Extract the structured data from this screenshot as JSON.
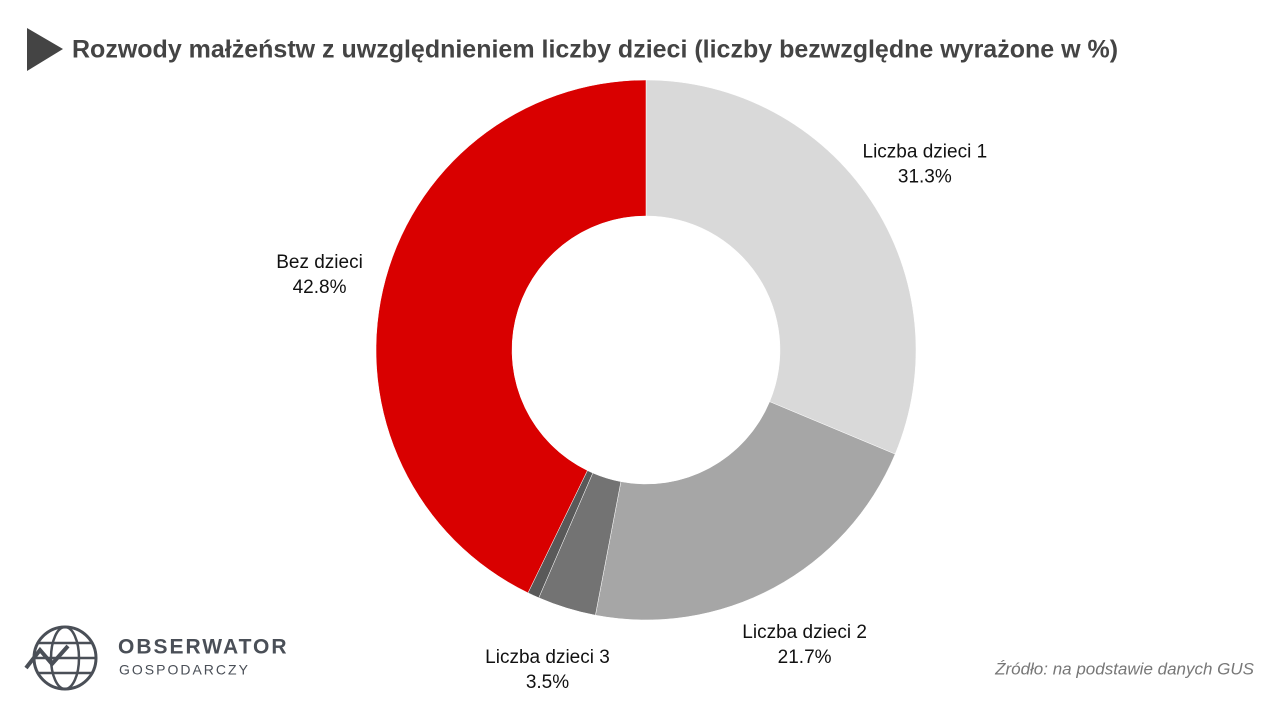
{
  "chart_data": {
    "type": "donut",
    "title": "Rozwody małżeństw z uwzględnieniem liczby dzieci (liczby bezwzględne wyrażone w %)",
    "categories": [
      "Liczba dzieci 1",
      "Liczba dzieci 2",
      "Liczba dzieci 3",
      null,
      "Bez dzieci"
    ],
    "values": [
      31.3,
      21.7,
      3.5,
      0.7,
      42.8
    ],
    "value_labels": [
      "31.3%",
      "21.7%",
      "3.5%",
      null,
      "42.8%"
    ],
    "colors": [
      "#d9d9d9",
      "#a6a6a6",
      "#737373",
      "#595959",
      "#d90000"
    ],
    "source": "Źródło: na podstawie danych GUS"
  },
  "brand": {
    "name": "OBSERWATOR",
    "subtitle": "GOSPODARCZY"
  }
}
